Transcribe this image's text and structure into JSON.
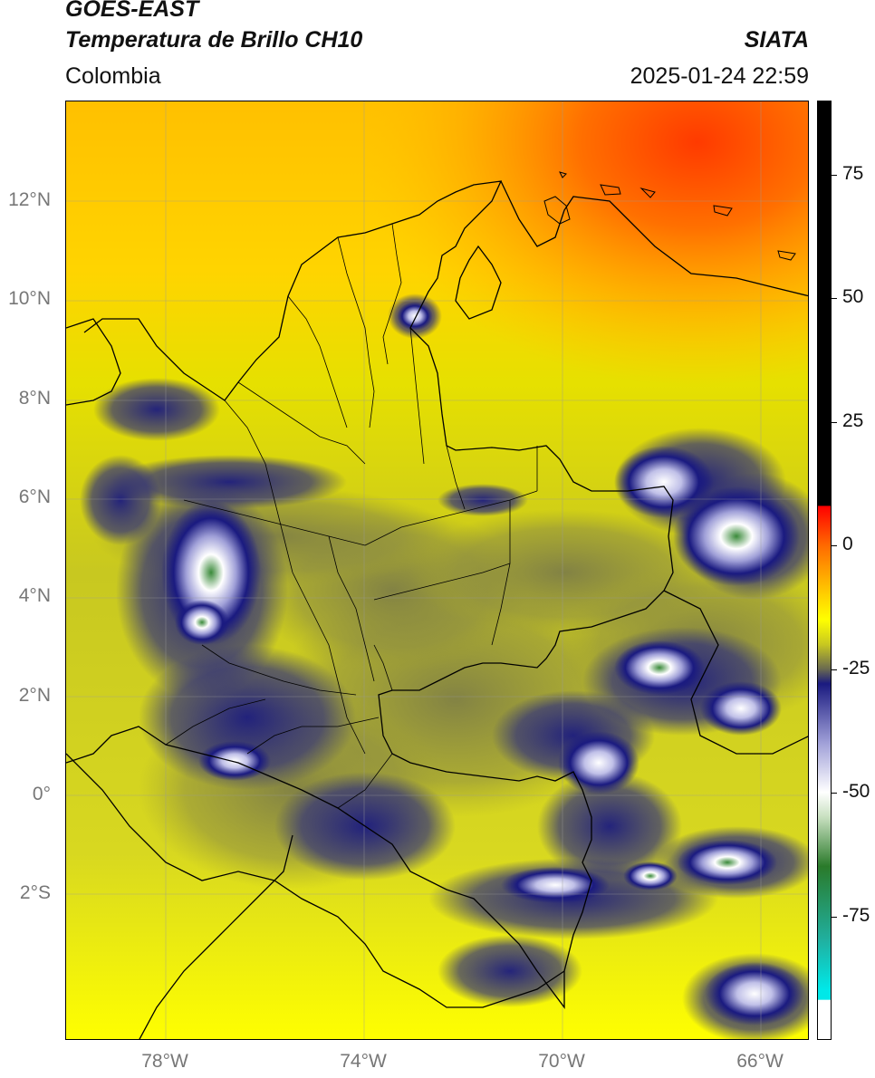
{
  "header": {
    "satellite": "GOES-EAST",
    "product": "Temperatura de Brillo CH10",
    "brand": "SIATA",
    "region": "Colombia",
    "datetime": "2025-01-24 22:59"
  },
  "axes": {
    "lat_labels": [
      {
        "lat": 12,
        "label": "12°N"
      },
      {
        "lat": 10,
        "label": "10°N"
      },
      {
        "lat": 8,
        "label": "8°N"
      },
      {
        "lat": 6,
        "label": "6°N"
      },
      {
        "lat": 4,
        "label": "4°N"
      },
      {
        "lat": 2,
        "label": "2°N"
      },
      {
        "lat": 0,
        "label": "0°"
      },
      {
        "lat": -2,
        "label": "2°S"
      }
    ],
    "lon_labels": [
      {
        "lon": -78,
        "label": "78°W"
      },
      {
        "lon": -74,
        "label": "74°W"
      },
      {
        "lon": -70,
        "label": "70°W"
      },
      {
        "lon": -66,
        "label": "66°W"
      }
    ],
    "lon_range": [
      -80,
      -65
    ],
    "lat_range": [
      -5,
      14
    ]
  },
  "colorbar": {
    "min": -100,
    "max": 90,
    "ticks": [
      {
        "value": 75,
        "label": "75"
      },
      {
        "value": 50,
        "label": "50"
      },
      {
        "value": 25,
        "label": "25"
      },
      {
        "value": 0,
        "label": "0"
      },
      {
        "value": -25,
        "label": "-25"
      },
      {
        "value": -50,
        "label": "-50"
      },
      {
        "value": -75,
        "label": "-75"
      }
    ]
  },
  "colors": {
    "background_yellow": "#d8d820",
    "bright_yellow": "#ffff00",
    "orange": "#ff8c00",
    "red_orange": "#ff4500",
    "olive": "#8a8a40",
    "navy": "#1a1a80",
    "white": "#ffffff",
    "green": "#3a9a3a",
    "cyan": "#00e0e0",
    "black": "#000000"
  }
}
